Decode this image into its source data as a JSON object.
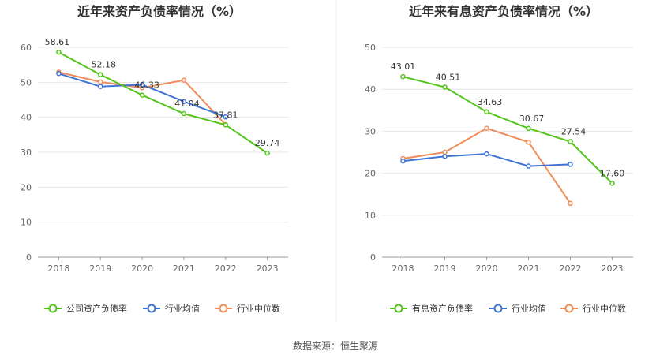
{
  "source_label": "数据来源：恒生聚源",
  "chart_data": [
    {
      "type": "line",
      "title": "近年来资产负债率情况（%）",
      "categories": [
        "2018",
        "2019",
        "2020",
        "2021",
        "2022",
        "2023"
      ],
      "ylim": [
        0,
        60
      ],
      "yticks": [
        "0",
        "10",
        "20",
        "30",
        "40",
        "50",
        "60"
      ],
      "grid": true,
      "legend_position": "bottom",
      "series": [
        {
          "name": "公司资产负债率",
          "color": "#52c41a",
          "values": [
            58.61,
            52.18,
            46.33,
            41.04,
            37.81,
            29.74
          ],
          "labels": [
            "58.61",
            "52.18",
            "46.33",
            "41.04",
            "37.81",
            "29.74"
          ]
        },
        {
          "name": "行业均值",
          "color": "#3f74d6",
          "values": [
            52.5,
            48.8,
            49.3,
            44.5,
            40.1,
            null
          ],
          "labels": []
        },
        {
          "name": "行业中位数",
          "color": "#f08c5a",
          "values": [
            52.9,
            50.1,
            48.4,
            50.6,
            37.9,
            null
          ],
          "labels": []
        }
      ]
    },
    {
      "type": "line",
      "title": "近年来有息资产负债率情况（%）",
      "categories": [
        "2018",
        "2019",
        "2020",
        "2021",
        "2022",
        "2023"
      ],
      "ylim": [
        0,
        50
      ],
      "yticks": [
        "0",
        "10",
        "20",
        "30",
        "40",
        "50"
      ],
      "grid": true,
      "legend_position": "bottom",
      "series": [
        {
          "name": "有息资产负债率",
          "color": "#52c41a",
          "values": [
            43.01,
            40.51,
            34.63,
            30.67,
            27.54,
            17.6
          ],
          "labels": [
            "43.01",
            "40.51",
            "34.63",
            "30.67",
            "27.54",
            "17.60"
          ]
        },
        {
          "name": "行业均值",
          "color": "#3f74d6",
          "values": [
            22.9,
            24.0,
            24.6,
            21.7,
            22.1,
            null
          ],
          "labels": []
        },
        {
          "name": "行业中位数",
          "color": "#f08c5a",
          "values": [
            23.5,
            25.0,
            30.7,
            27.4,
            12.8,
            null
          ],
          "labels": []
        }
      ]
    }
  ]
}
